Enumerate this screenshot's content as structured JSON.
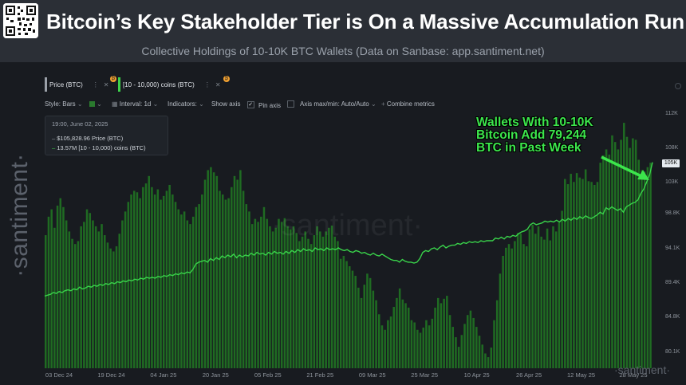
{
  "header": {
    "title": "Bitcoin’s Key Stakeholder Tier is On a Massive Accumulation Run",
    "subtitle": "Collective Holdings of 10-10K BTC Wallets (Data on Sanbase: app.santiment.net)"
  },
  "brand": {
    "vertical": "·santiment·",
    "watermark": "·santiment·",
    "corner": "·santiment·"
  },
  "legend_chips": [
    {
      "label": "Price (BTC)",
      "color": "#9aa0a8",
      "badge": "₿"
    },
    {
      "label": "[10 - 10,000) coins (BTC)",
      "color": "#3cd24a",
      "badge": "₿"
    }
  ],
  "toolbar": {
    "style": "Style: Bars",
    "interval": "Interval: 1d",
    "indicators": "Indicators:",
    "show_axis": "Show axis",
    "pin_axis": "Pin axis",
    "axis_maxmin": "Axis max/min: Auto/Auto",
    "combine": "Combine metrics"
  },
  "tooltip": {
    "date": "19:00, June 02, 2025",
    "price": "$105,828.96 Price (BTC)",
    "holdings": "13.57M [10 - 10,000) coins (BTC)"
  },
  "annotation": {
    "lines": [
      "Wallets With 10-10K",
      "Bitcoin  Add 79,244",
      "BTC in Past Week"
    ]
  },
  "y_badge": "105K",
  "colors": {
    "bars": "#1f6b22",
    "line": "#39d24a",
    "annotation": "#3ce64c"
  },
  "chart_data": {
    "type": "bar",
    "series": [
      {
        "name": "Price (BTC)",
        "type": "bar",
        "values": [
          96000,
          98500,
          99500,
          97000,
          100000,
          101000,
          99800,
          98000,
          96500,
          95500,
          94800,
          95200,
          97200,
          97800,
          99500,
          99000,
          98000,
          97200,
          96500,
          97500,
          96000,
          95000,
          94200,
          93800,
          94500,
          96200,
          98000,
          99200,
          100500,
          101500,
          102000,
          101800,
          101000,
          102500,
          103000,
          104000,
          102500,
          101500,
          102200,
          100800,
          101300,
          102000,
          102800,
          101500,
          100500,
          99500,
          98800,
          99200,
          98000,
          97500,
          98500,
          99800,
          100200,
          101500,
          103500,
          104800,
          105200,
          104500,
          104000,
          102000,
          101500,
          100800,
          101000,
          102500,
          104000,
          103500,
          104800,
          102000,
          100200,
          99200,
          97500,
          98200,
          97800,
          98500,
          99800,
          98200,
          97200,
          96500,
          97000,
          98200,
          97800,
          98300,
          97200,
          96800,
          97200,
          96300,
          95200,
          95800,
          96500,
          95500,
          94800,
          96000,
          97200,
          96500,
          95800,
          96500,
          97000,
          97300,
          95800,
          95200,
          92800,
          93200,
          92500,
          91800,
          91200,
          90500,
          88900,
          87500,
          89300,
          90800,
          90200,
          88500,
          87200,
          85300,
          83800,
          83200,
          84500,
          85000,
          86300,
          87500,
          88800,
          87300,
          86800,
          86200,
          84500,
          84200,
          83200,
          82800,
          83500,
          84500,
          83800,
          84700,
          86200,
          87500,
          86800,
          87400,
          87800,
          85200,
          83600,
          82200,
          80900,
          82500,
          84000,
          85200,
          85800,
          84800,
          83600,
          82400,
          81200,
          80000,
          79500,
          80800,
          84500,
          87200,
          90800,
          93200,
          94300,
          94800,
          94200,
          95200,
          96300,
          96200,
          94800,
          94500,
          96800,
          97400,
          96200,
          97200,
          95800,
          95400,
          96900,
          95300,
          97200,
          96500,
          97700,
          99300,
          103600,
          102900,
          104300,
          103200,
          104400,
          103800,
          103600,
          104900,
          103300,
          103200,
          102800,
          103200,
          105800,
          106800,
          107600,
          106900,
          109500,
          108600,
          107600,
          108900,
          111200,
          109300,
          107800,
          109100,
          108900,
          106200,
          104800,
          104600,
          105200,
          105800
        ],
        "baseline": 78000
      },
      {
        "name": "[10 - 10,000) coins (BTC)",
        "type": "line",
        "values": [
          13.42,
          13.421,
          13.422,
          13.424,
          13.423,
          13.425,
          13.424,
          13.426,
          13.427,
          13.426,
          13.428,
          13.427,
          13.43,
          13.428,
          13.429,
          13.431,
          13.43,
          13.432,
          13.431,
          13.433,
          13.432,
          13.434,
          13.433,
          13.435,
          13.434,
          13.436,
          13.435,
          13.437,
          13.436,
          13.438,
          13.437,
          13.439,
          13.438,
          13.44,
          13.439,
          13.441,
          13.44,
          13.441,
          13.44,
          13.442,
          13.441,
          13.443,
          13.442,
          13.444,
          13.443,
          13.445,
          13.444,
          13.446,
          13.445,
          13.447,
          13.446,
          13.45,
          13.456,
          13.458,
          13.459,
          13.46,
          13.458,
          13.462,
          13.46,
          13.463,
          13.461,
          13.465,
          13.463,
          13.466,
          13.464,
          13.467,
          13.463,
          13.466,
          13.464,
          13.466,
          13.465,
          13.468,
          13.466,
          13.469,
          13.467,
          13.468,
          13.466,
          13.469,
          13.467,
          13.47,
          13.468,
          13.469,
          13.467,
          13.47,
          13.468,
          13.471,
          13.469,
          13.472,
          13.47,
          13.473,
          13.471,
          13.472,
          13.47,
          13.474,
          13.472,
          13.473,
          13.471,
          13.474,
          13.472,
          13.473,
          13.472,
          13.474,
          13.472,
          13.471,
          13.472,
          13.47,
          13.469,
          13.471,
          13.47,
          13.468,
          13.469,
          13.467,
          13.466,
          13.468,
          13.466,
          13.465,
          13.467,
          13.465,
          13.463,
          13.461,
          13.46,
          13.46,
          13.458,
          13.461,
          13.459,
          13.458,
          13.458,
          13.457,
          13.458,
          13.462,
          13.469,
          13.471,
          13.47,
          13.473,
          13.474,
          13.472,
          13.475,
          13.477,
          13.474,
          13.476,
          13.477,
          13.477,
          13.479,
          13.478,
          13.48,
          13.479,
          13.481,
          13.48,
          13.481,
          13.48,
          13.482,
          13.481,
          13.482,
          13.482,
          13.482,
          13.485,
          13.484,
          13.486,
          13.484,
          13.487,
          13.486,
          13.488,
          13.487,
          13.49,
          13.492,
          13.493,
          13.495,
          13.5,
          13.502,
          13.5,
          13.501,
          13.502,
          13.504,
          13.503,
          13.504,
          13.503,
          13.505,
          13.503,
          13.506,
          13.504,
          13.507,
          13.505,
          13.508,
          13.506,
          13.509,
          13.507,
          13.51,
          13.508,
          13.507,
          13.509,
          13.511,
          13.514,
          13.512,
          13.519,
          13.517,
          13.52,
          13.518,
          13.516,
          13.518,
          13.514,
          13.52,
          13.522,
          13.524,
          13.525,
          13.528,
          13.535,
          13.54,
          13.548,
          13.556,
          13.57
        ]
      }
    ],
    "x_tick_labels": [
      "03 Dec 24",
      "19 Dec 24",
      "04 Jan 25",
      "20 Jan 25",
      "05 Feb 25",
      "21 Feb 25",
      "09 Mar 25",
      "25 Mar 25",
      "10 Apr 25",
      "26 Apr 25",
      "12 May 25",
      "28 May 25"
    ],
    "y_tick_labels": [
      "112K",
      "108K",
      "103K",
      "98.8K",
      "94.1K",
      "89.4K",
      "84.8K",
      "80.1K"
    ],
    "y_ticks": [
      112300,
      107600,
      103000,
      98800,
      94100,
      89400,
      84800,
      80100
    ],
    "ylim": [
      78000,
      112500
    ],
    "grid": false
  }
}
